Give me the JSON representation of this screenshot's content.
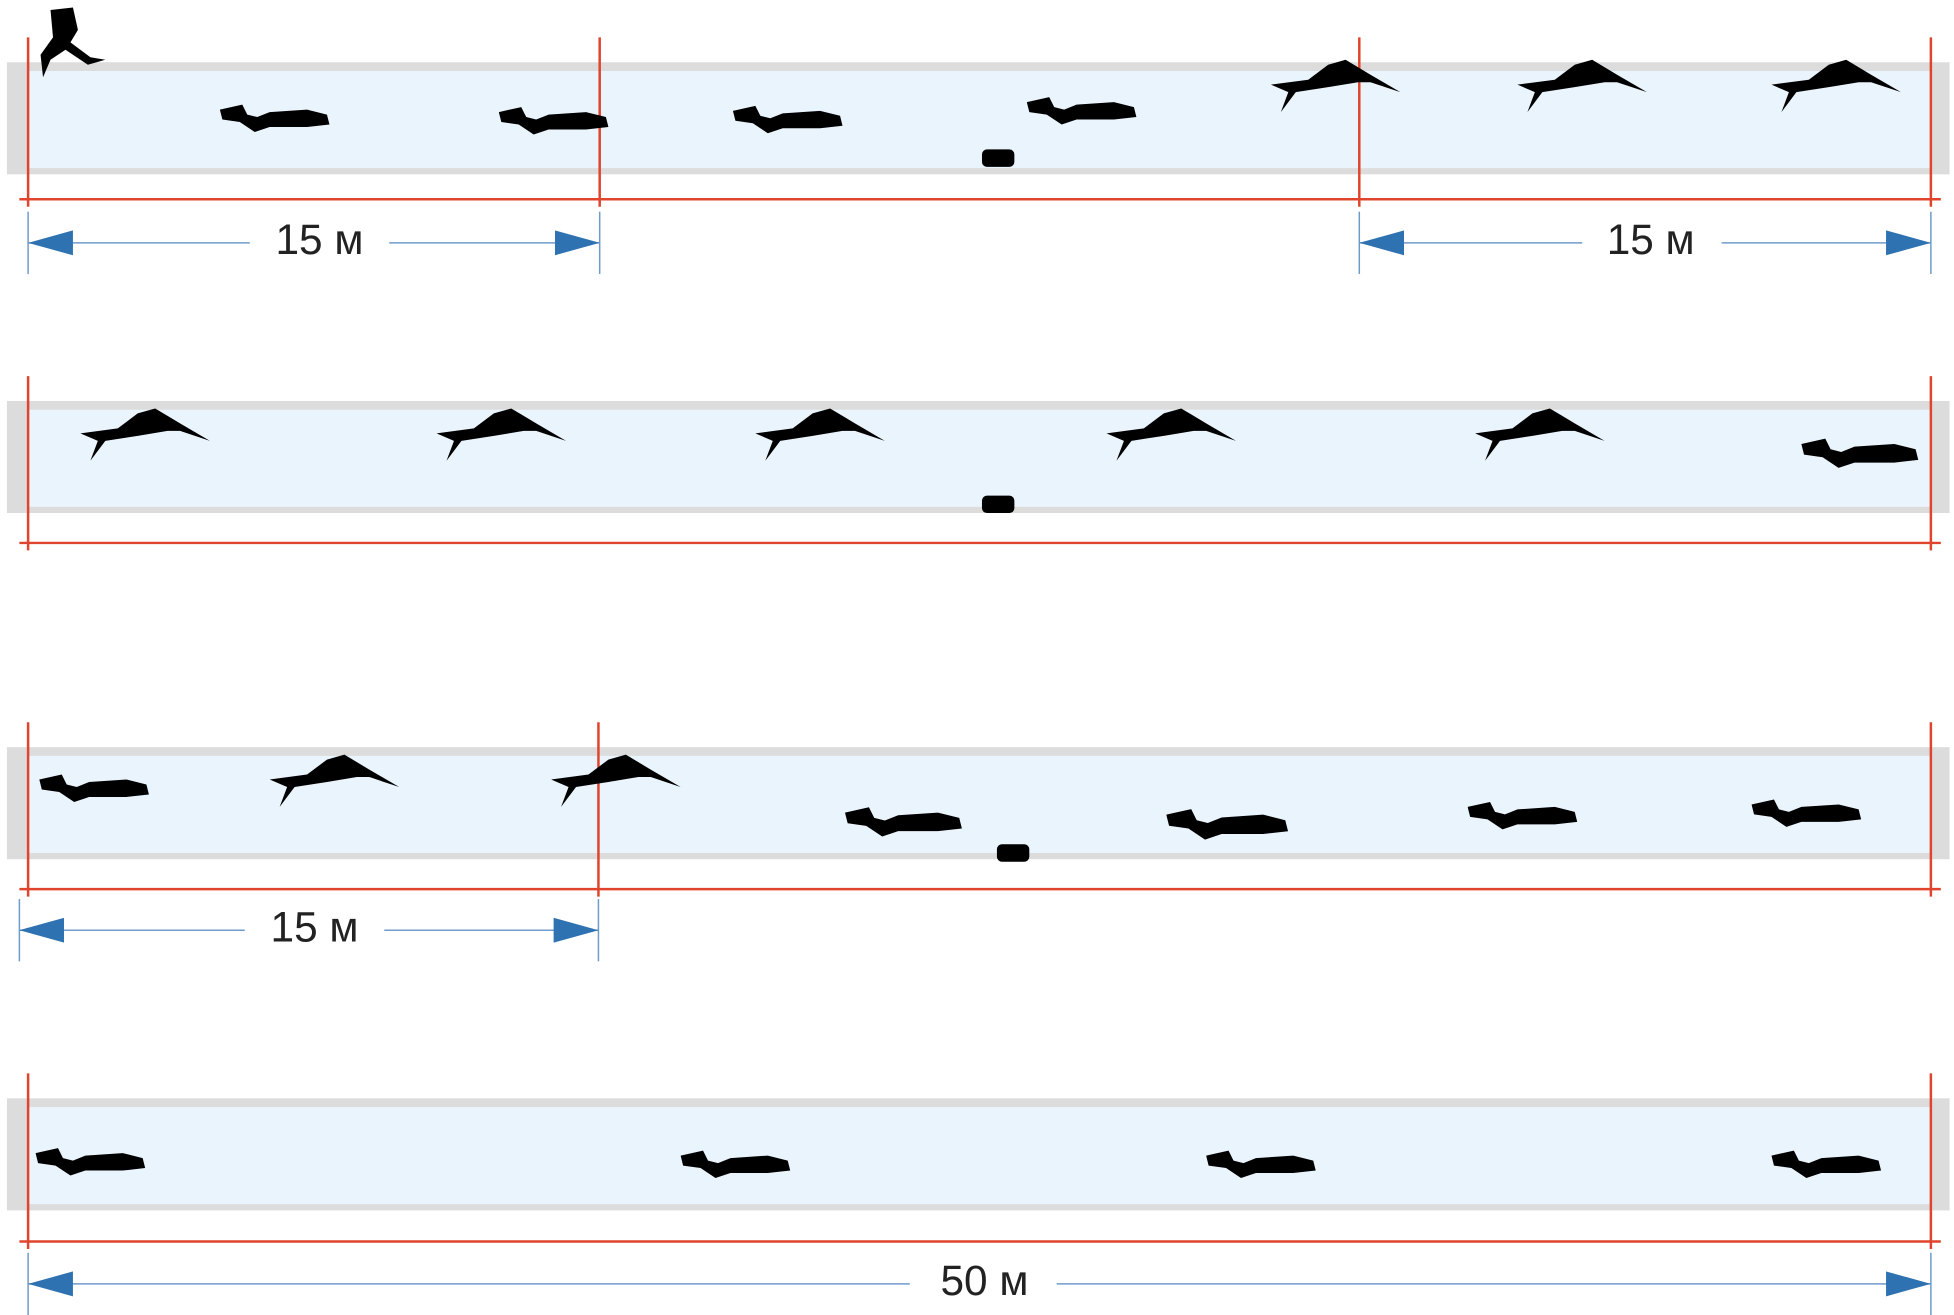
{
  "labels": [
    "15 м",
    "15 м",
    "15 м",
    "50 м"
  ]
}
